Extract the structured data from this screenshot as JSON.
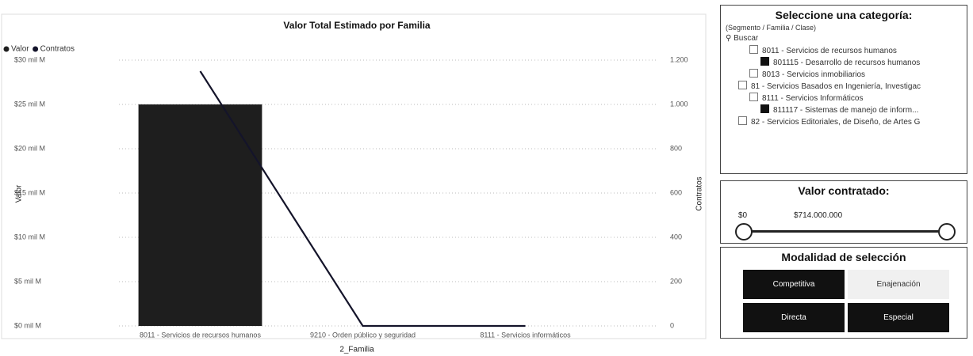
{
  "chart_data": {
    "type": "bar",
    "title": "Valor Total Estimado por Familia",
    "x_label": "2_Familia",
    "y_label": "Valor",
    "y2_label": "Contratos",
    "categories": [
      "8011 - Servicios de recursos humanos",
      "9210 - Orden público y seguridad",
      "8111 - Servicios informáticos"
    ],
    "series": [
      {
        "name": "Valor",
        "color": "#1e1e1e",
        "values": [
          25,
          0,
          0
        ]
      },
      {
        "name": "Contratos",
        "color": "#14142a",
        "type": "line",
        "axis": "y2",
        "values": [
          1150,
          0,
          0
        ]
      }
    ],
    "ylim": [
      0,
      30
    ],
    "yticks": [
      {
        "value": 0,
        "label": "$0 mil M"
      },
      {
        "value": 5,
        "label": "$5 mil M"
      },
      {
        "value": 10,
        "label": "$10 mil M"
      },
      {
        "value": 15,
        "label": "$15 mil M"
      },
      {
        "value": 20,
        "label": "$20 mil M"
      },
      {
        "value": 25,
        "label": "$25 mil M"
      },
      {
        "value": 30,
        "label": "$30 mil M"
      }
    ],
    "y2lim": [
      0,
      1200
    ],
    "y2ticks": [
      0,
      200,
      400,
      600,
      800,
      {
        "value": 1000,
        "label": "1.000"
      },
      {
        "value": 1200,
        "label": "1.200"
      }
    ],
    "grid": true,
    "legend": "top-left"
  },
  "category_slicer": {
    "title": "Seleccione una categoría:",
    "subtitle": "(Segmento / Familia / Clase)",
    "search": "Buscar",
    "items": [
      {
        "label": "8011 - Servicios de recursos humanos",
        "level": 2,
        "checked": false
      },
      {
        "label": "801115 - Desarrollo de recursos humanos",
        "level": 3,
        "checked": true
      },
      {
        "label": "8013 - Servicios inmobiliarios",
        "level": 2,
        "checked": false
      },
      {
        "label": "81 - Servicios Basados en Ingeniería, Investigac",
        "level": 1,
        "checked": false
      },
      {
        "label": "8111 - Servicios Informáticos",
        "level": 2,
        "checked": false
      },
      {
        "label": "811117 - Sistemas de manejo de inform...",
        "level": 3,
        "checked": true
      },
      {
        "label": "82 - Servicios Editoriales, de Diseño, de Artes G",
        "level": 1,
        "checked": false
      }
    ]
  },
  "value_slicer": {
    "title": "Valor contratado:",
    "min_label": "$0",
    "max_label": "$714.000.000"
  },
  "mode_slicer": {
    "title": "Modalidad de selección",
    "buttons": [
      {
        "label": "Competitiva",
        "selected": true
      },
      {
        "label": "Enajenación",
        "selected": false
      },
      {
        "label": "Directa",
        "selected": true
      },
      {
        "label": "Especial",
        "selected": true
      }
    ]
  }
}
